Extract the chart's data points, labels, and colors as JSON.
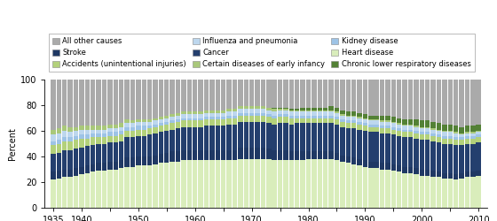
{
  "years": [
    1935,
    1936,
    1937,
    1938,
    1939,
    1940,
    1941,
    1942,
    1943,
    1944,
    1945,
    1946,
    1947,
    1948,
    1949,
    1950,
    1951,
    1952,
    1953,
    1954,
    1955,
    1956,
    1957,
    1958,
    1959,
    1960,
    1961,
    1962,
    1963,
    1964,
    1965,
    1966,
    1967,
    1968,
    1969,
    1970,
    1971,
    1972,
    1973,
    1974,
    1975,
    1976,
    1977,
    1978,
    1979,
    1980,
    1981,
    1982,
    1983,
    1984,
    1985,
    1986,
    1987,
    1988,
    1989,
    1990,
    1991,
    1992,
    1993,
    1994,
    1995,
    1996,
    1997,
    1998,
    1999,
    2000,
    2001,
    2002,
    2003,
    2004,
    2005,
    2006,
    2007,
    2008,
    2009,
    2010
  ],
  "heart_disease": [
    22,
    23,
    24,
    24,
    25,
    26,
    27,
    28,
    29,
    29,
    30,
    30,
    31,
    32,
    32,
    33,
    33,
    33,
    34,
    35,
    35,
    36,
    36,
    37,
    37,
    37,
    37,
    37,
    37,
    37,
    37,
    37,
    37,
    38,
    38,
    38,
    38,
    38,
    38,
    37,
    37,
    37,
    37,
    37,
    37,
    38,
    38,
    38,
    38,
    38,
    37,
    36,
    35,
    34,
    33,
    32,
    31,
    31,
    30,
    30,
    29,
    28,
    27,
    27,
    26,
    25,
    25,
    24,
    24,
    23,
    23,
    22,
    23,
    24,
    24,
    25
  ],
  "stroke": [
    6,
    6,
    6,
    6,
    6,
    6,
    6,
    6,
    6,
    6,
    6,
    6,
    6,
    7,
    7,
    7,
    7,
    7,
    7,
    7,
    8,
    8,
    8,
    8,
    8,
    8,
    8,
    8,
    8,
    8,
    8,
    8,
    8,
    9,
    9,
    9,
    9,
    9,
    8,
    8,
    8,
    8,
    7,
    7,
    7,
    6,
    6,
    6,
    6,
    6,
    6,
    5,
    5,
    5,
    5,
    5,
    5,
    5,
    5,
    5,
    5,
    5,
    5,
    5,
    5,
    5,
    5,
    5,
    4,
    4,
    4,
    4,
    4,
    4,
    4,
    4
  ],
  "cancer": [
    14,
    14,
    15,
    15,
    15,
    15,
    15,
    15,
    15,
    15,
    15,
    15,
    15,
    16,
    16,
    16,
    16,
    17,
    17,
    17,
    17,
    17,
    18,
    18,
    18,
    18,
    18,
    19,
    19,
    19,
    19,
    20,
    20,
    20,
    20,
    20,
    20,
    20,
    20,
    20,
    21,
    21,
    21,
    22,
    22,
    22,
    22,
    22,
    22,
    22,
    22,
    22,
    22,
    23,
    23,
    23,
    23,
    23,
    23,
    23,
    23,
    23,
    23,
    23,
    23,
    23,
    23,
    23,
    23,
    23,
    23,
    23,
    22,
    22,
    22,
    22
  ],
  "accidents": [
    7,
    7,
    7,
    7,
    7,
    7,
    6,
    6,
    5,
    5,
    5,
    5,
    5,
    5,
    5,
    5,
    5,
    5,
    5,
    5,
    5,
    5,
    5,
    5,
    5,
    5,
    5,
    5,
    5,
    5,
    5,
    5,
    5,
    5,
    5,
    5,
    5,
    5,
    5,
    5,
    5,
    5,
    5,
    4,
    4,
    4,
    4,
    4,
    4,
    4,
    4,
    4,
    4,
    4,
    4,
    4,
    4,
    4,
    4,
    4,
    4,
    4,
    4,
    4,
    4,
    4,
    4,
    4,
    4,
    4,
    4,
    4,
    4,
    4,
    4,
    4
  ],
  "kidney": [
    3,
    3,
    3,
    3,
    3,
    3,
    3,
    3,
    3,
    3,
    3,
    3,
    3,
    3,
    3,
    3,
    3,
    2,
    2,
    2,
    2,
    2,
    2,
    2,
    2,
    2,
    2,
    2,
    2,
    2,
    2,
    2,
    2,
    2,
    2,
    2,
    2,
    2,
    2,
    2,
    2,
    2,
    2,
    2,
    2,
    2,
    2,
    2,
    2,
    2,
    2,
    2,
    2,
    2,
    2,
    2,
    2,
    2,
    2,
    2,
    2,
    2,
    2,
    2,
    2,
    2,
    2,
    2,
    2,
    2,
    2,
    2,
    2,
    2,
    2,
    2
  ],
  "influenza": [
    5,
    5,
    5,
    4,
    4,
    4,
    4,
    3,
    3,
    3,
    3,
    3,
    3,
    3,
    3,
    3,
    3,
    3,
    3,
    3,
    3,
    3,
    3,
    3,
    3,
    3,
    3,
    3,
    3,
    3,
    3,
    3,
    3,
    3,
    3,
    3,
    3,
    3,
    3,
    3,
    3,
    3,
    3,
    3,
    3,
    3,
    3,
    3,
    3,
    3,
    3,
    3,
    3,
    3,
    3,
    3,
    3,
    3,
    3,
    3,
    3,
    3,
    3,
    3,
    3,
    3,
    3,
    3,
    3,
    3,
    3,
    3,
    2,
    2,
    2,
    2
  ],
  "early_infancy": [
    4,
    4,
    4,
    4,
    3,
    3,
    3,
    3,
    3,
    3,
    3,
    3,
    3,
    3,
    2,
    2,
    2,
    2,
    2,
    2,
    2,
    2,
    2,
    2,
    2,
    2,
    2,
    2,
    2,
    2,
    2,
    2,
    2,
    2,
    2,
    2,
    2,
    2,
    2,
    2,
    1,
    1,
    1,
    1,
    1,
    1,
    1,
    1,
    1,
    1,
    1,
    1,
    1,
    1,
    1,
    1,
    1,
    1,
    1,
    1,
    1,
    1,
    1,
    1,
    1,
    1,
    1,
    1,
    1,
    1,
    1,
    1,
    1,
    1,
    1,
    1
  ],
  "clrd": [
    0,
    0,
    0,
    0,
    0,
    0,
    0,
    0,
    0,
    0,
    0,
    0,
    0,
    0,
    0,
    0,
    0,
    0,
    0,
    0,
    0,
    0,
    0,
    0,
    0,
    0,
    0,
    0,
    0,
    0,
    0,
    0,
    0,
    0,
    0,
    0,
    0,
    0,
    0,
    1,
    1,
    1,
    1,
    1,
    2,
    2,
    2,
    2,
    2,
    3,
    3,
    3,
    3,
    3,
    3,
    3,
    3,
    3,
    4,
    4,
    4,
    4,
    4,
    4,
    5,
    5,
    5,
    5,
    5,
    5,
    5,
    5,
    5,
    5,
    5,
    5
  ],
  "colors": {
    "heart_disease": "#d9edbb",
    "stroke": "#1f3864",
    "cancer": "#243f6e",
    "accidents": "#b3d17a",
    "kidney": "#9dc3e6",
    "influenza": "#bdd7ee",
    "early_infancy": "#a9c87a",
    "clrd": "#538135",
    "other": "#aaaaaa"
  },
  "legend_items": [
    {
      "label": "All other causes",
      "color": "#aaaaaa"
    },
    {
      "label": "Stroke",
      "color": "#1f3864"
    },
    {
      "label": "Accidents (unintentional injuries)",
      "color": "#b3d17a"
    },
    {
      "label": "Influenza and pneumonia",
      "color": "#bdd7ee"
    },
    {
      "label": "Cancer",
      "color": "#243f6e"
    },
    {
      "label": "Certain diseases of early infancy",
      "color": "#a9c87a"
    },
    {
      "label": "Kidney disease",
      "color": "#9dc3e6"
    },
    {
      "label": "Heart disease",
      "color": "#d9edbb"
    },
    {
      "label": "Chronic lower respiratory diseases",
      "color": "#538135"
    }
  ],
  "ylabel": "Percent",
  "ylim": [
    0,
    100
  ],
  "figsize": [
    5.6,
    2.5
  ],
  "dpi": 100
}
